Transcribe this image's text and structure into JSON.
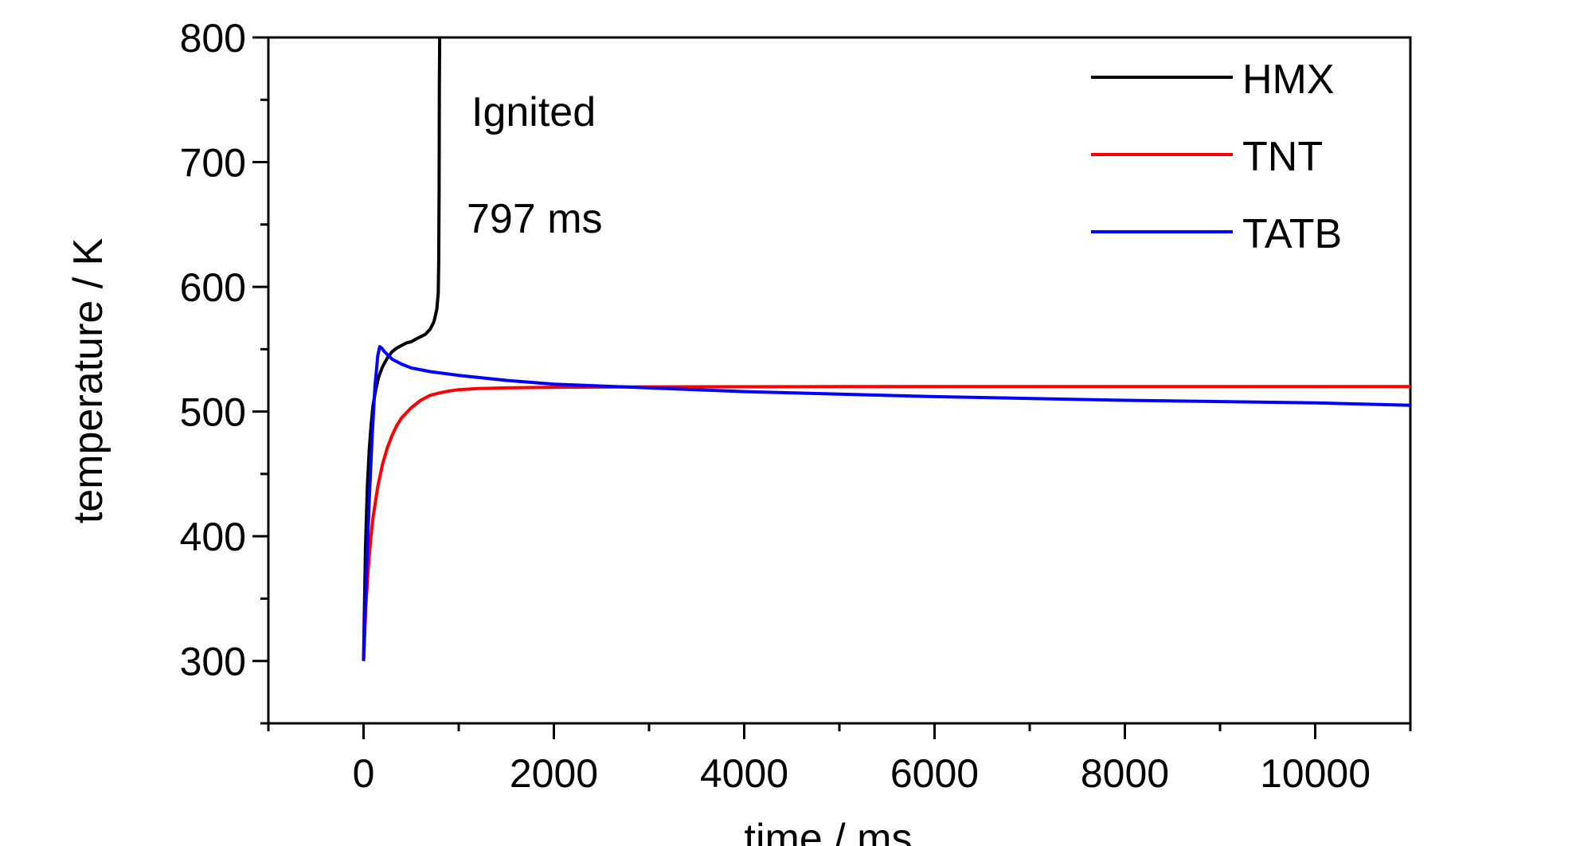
{
  "chart_data": {
    "type": "line",
    "title": "",
    "xlabel": "time / ms",
    "ylabel": "temperature / K",
    "xlim": [
      -1000,
      11000
    ],
    "ylim": [
      250,
      800
    ],
    "xticks": [
      0,
      2000,
      4000,
      6000,
      8000,
      10000
    ],
    "yticks": [
      300,
      400,
      500,
      600,
      700,
      800
    ],
    "grid": false,
    "legend_position": "top-right",
    "annotations": [
      {
        "text": "Ignited",
        "x": 1200,
        "y": 740
      },
      {
        "text": "797 ms",
        "x": 1200,
        "y": 655
      }
    ],
    "series": [
      {
        "name": "HMX",
        "color": "#000000",
        "x": [
          0,
          20,
          40,
          60,
          80,
          100,
          130,
          160,
          200,
          250,
          300,
          350,
          400,
          450,
          500,
          550,
          600,
          650,
          700,
          740,
          770,
          785,
          790,
          794,
          797,
          800
        ],
        "y": [
          300,
          390,
          440,
          470,
          490,
          505,
          518,
          528,
          536,
          543,
          548,
          551,
          553,
          555,
          556,
          558,
          560,
          562,
          566,
          572,
          582,
          595,
          620,
          680,
          760,
          800
        ]
      },
      {
        "name": "TNT",
        "color": "#ff0000",
        "x": [
          0,
          25,
          50,
          75,
          100,
          150,
          200,
          250,
          300,
          350,
          400,
          500,
          600,
          700,
          800,
          900,
          1000,
          1200,
          1500,
          2000,
          3000,
          5000,
          8000,
          11000
        ],
        "y": [
          300,
          345,
          375,
          398,
          415,
          440,
          458,
          471,
          481,
          489,
          495,
          503,
          509,
          513,
          515,
          516.5,
          517.5,
          518.5,
          519,
          519.5,
          519.8,
          520,
          520,
          520
        ]
      },
      {
        "name": "TATB",
        "color": "#0000ff",
        "x": [
          0,
          30,
          60,
          90,
          120,
          150,
          170,
          190,
          220,
          260,
          300,
          400,
          500,
          700,
          1000,
          1500,
          2000,
          3000,
          4000,
          5000,
          6000,
          8000,
          10000,
          11000
        ],
        "y": [
          300,
          370,
          430,
          480,
          520,
          545,
          552,
          551,
          548,
          545,
          542,
          538,
          535,
          532,
          529,
          525,
          522,
          519,
          516,
          514,
          512,
          509,
          507,
          505
        ]
      }
    ]
  }
}
